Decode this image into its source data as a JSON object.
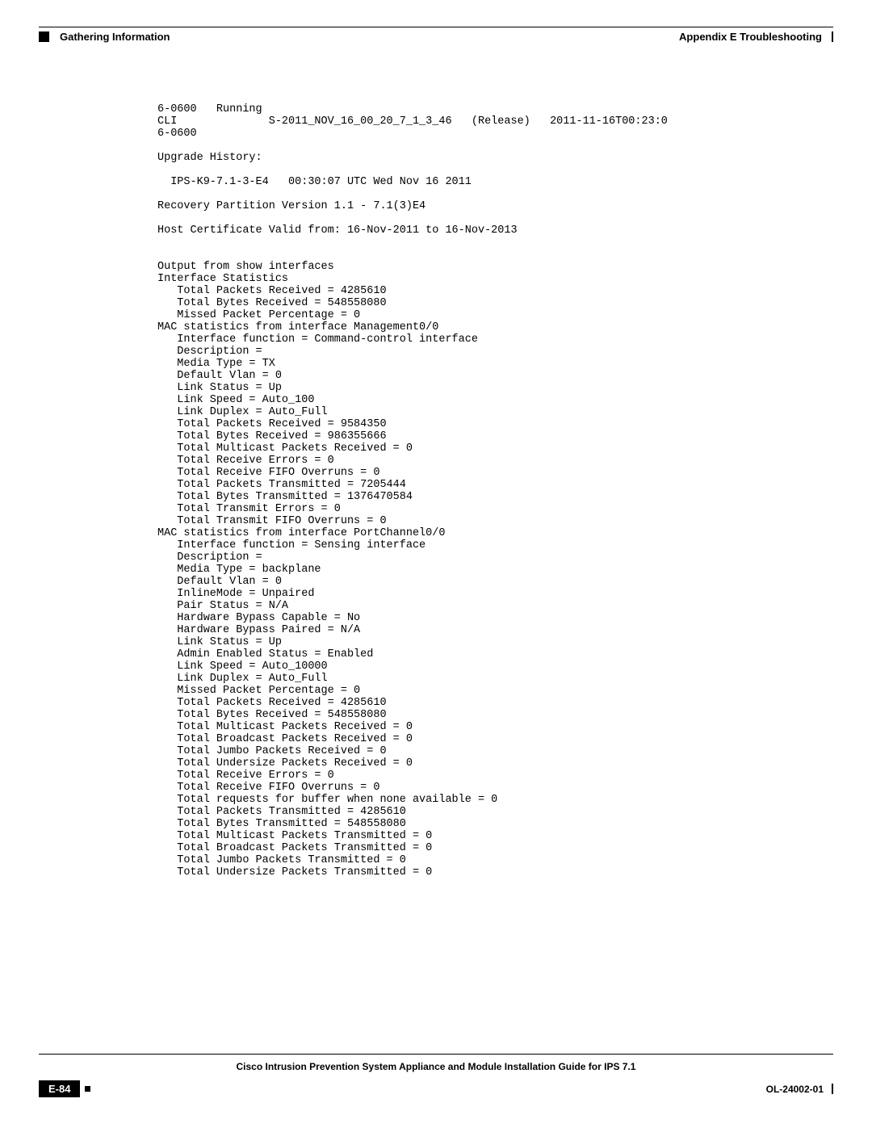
{
  "header": {
    "left_text": "Gathering Information",
    "right_text": "Appendix E    Troubleshooting"
  },
  "code": {
    "text": "6-0600   Running\nCLI              S-2011_NOV_16_00_20_7_1_3_46   (Release)   2011-11-16T00:23:0\n6-0600\n\nUpgrade History:\n\n  IPS-K9-7.1-3-E4   00:30:07 UTC Wed Nov 16 2011\n\nRecovery Partition Version 1.1 - 7.1(3)E4\n\nHost Certificate Valid from: 16-Nov-2011 to 16-Nov-2013\n\n\nOutput from show interfaces\nInterface Statistics\n   Total Packets Received = 4285610\n   Total Bytes Received = 548558080\n   Missed Packet Percentage = 0\nMAC statistics from interface Management0/0\n   Interface function = Command-control interface\n   Description =\n   Media Type = TX\n   Default Vlan = 0\n   Link Status = Up\n   Link Speed = Auto_100\n   Link Duplex = Auto_Full\n   Total Packets Received = 9584350\n   Total Bytes Received = 986355666\n   Total Multicast Packets Received = 0\n   Total Receive Errors = 0\n   Total Receive FIFO Overruns = 0\n   Total Packets Transmitted = 7205444\n   Total Bytes Transmitted = 1376470584\n   Total Transmit Errors = 0\n   Total Transmit FIFO Overruns = 0\nMAC statistics from interface PortChannel0/0\n   Interface function = Sensing interface\n   Description =\n   Media Type = backplane\n   Default Vlan = 0\n   InlineMode = Unpaired\n   Pair Status = N/A\n   Hardware Bypass Capable = No\n   Hardware Bypass Paired = N/A\n   Link Status = Up\n   Admin Enabled Status = Enabled\n   Link Speed = Auto_10000\n   Link Duplex = Auto_Full\n   Missed Packet Percentage = 0\n   Total Packets Received = 4285610\n   Total Bytes Received = 548558080\n   Total Multicast Packets Received = 0\n   Total Broadcast Packets Received = 0\n   Total Jumbo Packets Received = 0\n   Total Undersize Packets Received = 0\n   Total Receive Errors = 0\n   Total Receive FIFO Overruns = 0\n   Total requests for buffer when none available = 0\n   Total Packets Transmitted = 4285610\n   Total Bytes Transmitted = 548558080\n   Total Multicast Packets Transmitted = 0\n   Total Broadcast Packets Transmitted = 0\n   Total Jumbo Packets Transmitted = 0\n   Total Undersize Packets Transmitted = 0"
  },
  "footer": {
    "title": "Cisco Intrusion Prevention System Appliance and Module Installation Guide for IPS 7.1",
    "page_number": "E-84",
    "doc_id": "OL-24002-01"
  }
}
